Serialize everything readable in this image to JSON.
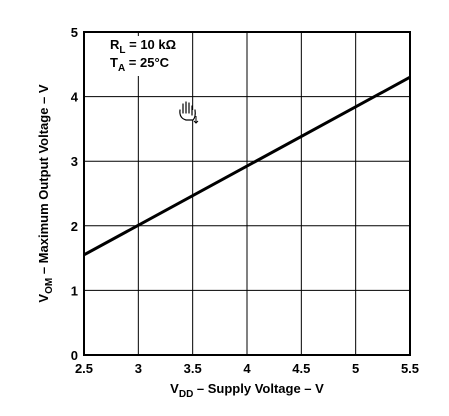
{
  "chart_data": {
    "type": "line",
    "x": [
      2.5,
      5.5
    ],
    "series": [
      {
        "values": [
          1.55,
          4.3
        ]
      }
    ],
    "xlim": [
      2.5,
      5.5
    ],
    "ylim": [
      0,
      5
    ],
    "xticks": [
      "2.5",
      "3",
      "3.5",
      "4",
      "4.5",
      "5",
      "5.5"
    ],
    "yticks": [
      "0",
      "1",
      "2",
      "3",
      "4",
      "5"
    ],
    "grid": true,
    "xlabel": {
      "main": "V",
      "sub": "DD",
      "rest": " – Supply Voltage – V"
    },
    "ylabel": {
      "main": "V",
      "sub": "OM",
      "rest": " – Maximum Output Voltage – V"
    },
    "annotations": [
      {
        "main": "R",
        "sub": "L",
        "rest": " = 10 kΩ"
      },
      {
        "main": "T",
        "sub": "A",
        "rest": " = 25°C"
      }
    ],
    "series_color": "#000000"
  }
}
